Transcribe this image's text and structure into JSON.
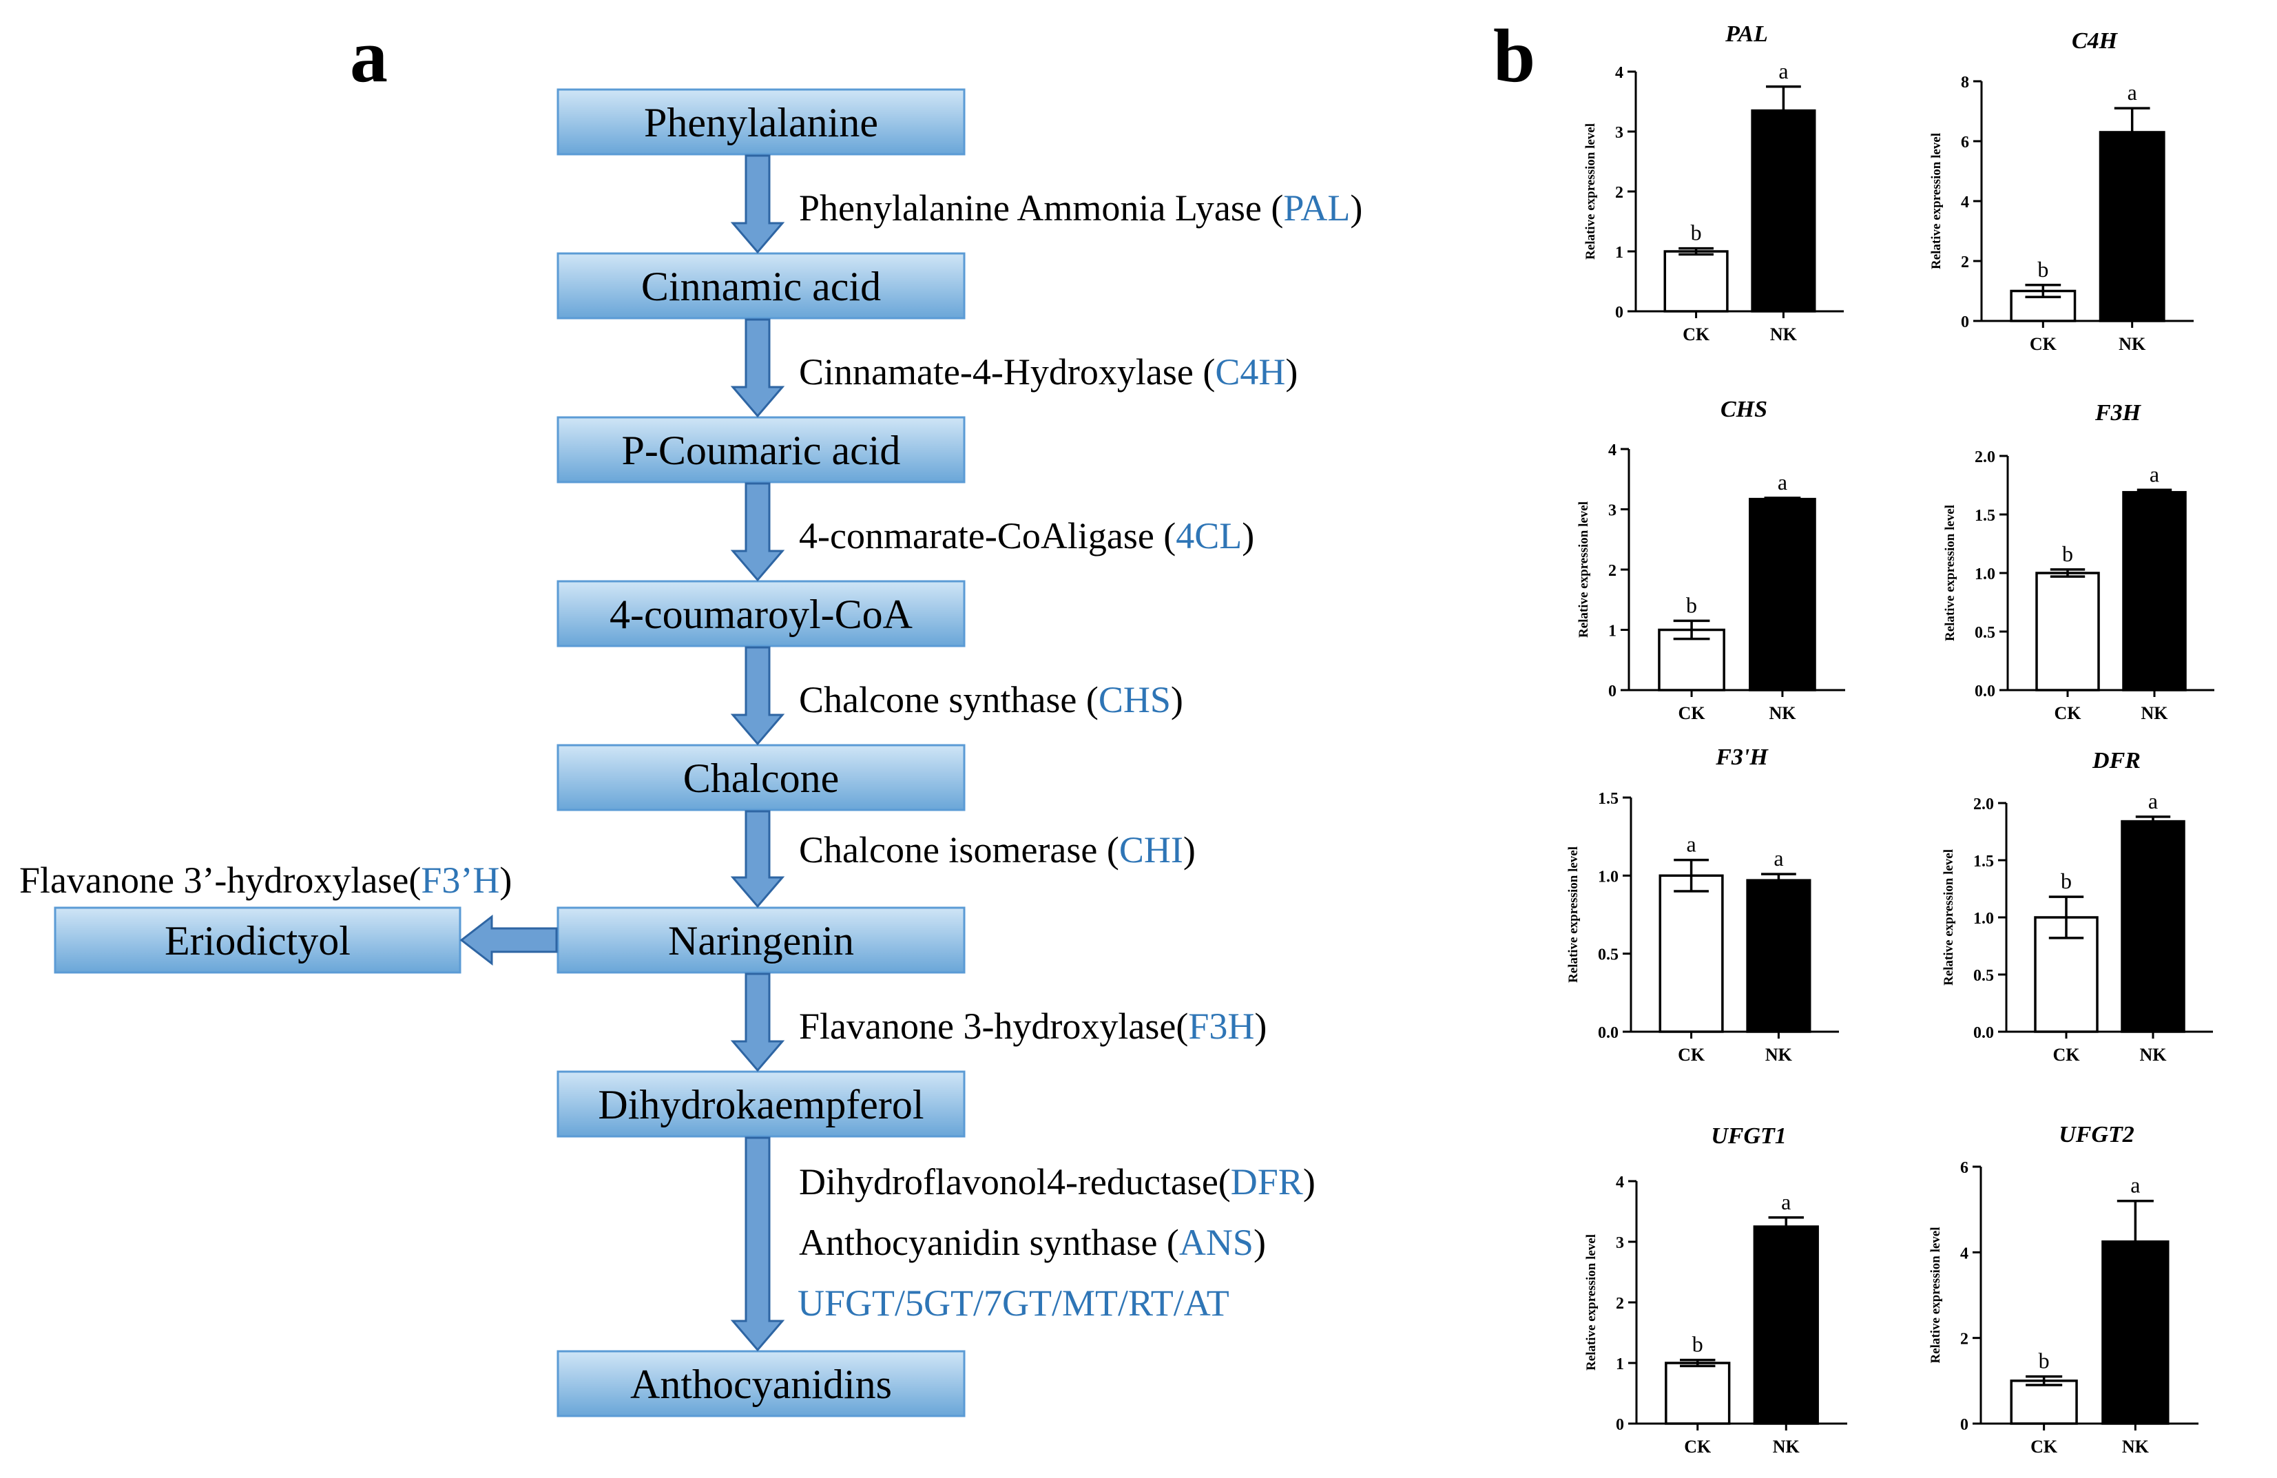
{
  "panel_a": {
    "label": "a",
    "colors": {
      "box_top": "#cfe5f6",
      "box_bottom": "#6aa6d8",
      "box_border": "#5b9bd5",
      "arrow_fill": "#6b9fd4",
      "arrow_stroke": "#2e65a3",
      "enzyme_abbr": "#2e75b6",
      "text": "#000000"
    },
    "compounds": [
      "Phenylalanine",
      "Cinnamic acid",
      "P-Coumaric acid",
      "4-coumaroyl-CoA",
      "Chalcone",
      "Naringenin",
      "Dihydrokaempferol",
      "Anthocyanidins"
    ],
    "side_compound": "Eriodictyol",
    "enzymes": [
      {
        "name": "Phenylalanine Ammonia Lyase (",
        "abbr": "PAL",
        "close": ")"
      },
      {
        "name": "Cinnamate-4-Hydroxylase (",
        "abbr": "C4H",
        "close": ")"
      },
      {
        "name": "4-conmarate-CoAligase (",
        "abbr": "4CL",
        "close": ")"
      },
      {
        "name": "Chalcone synthase (",
        "abbr": "CHS",
        "close": ")"
      },
      {
        "name": "Chalcone isomerase (",
        "abbr": "CHI",
        "close": ")"
      },
      {
        "name": "Flavanone 3-hydroxylase(",
        "abbr": "F3H",
        "close": ")"
      },
      {
        "name": "Dihydroflavonol4-reductase(",
        "abbr": "DFR",
        "close": ")"
      },
      {
        "name": "Anthocyanidin synthase (",
        "abbr": "ANS",
        "close": ")"
      }
    ],
    "final_enzymes": "UFGT/5GT/7GT/MT/RT/AT",
    "side_enzyme": {
      "name": "Flavanone 3’-hydroxylase(",
      "abbr": "F3’H",
      "close": ")"
    }
  },
  "panel_b": {
    "label": "b",
    "ylabel": "Relative expression level",
    "bar_colors": {
      "CK": "#ffffff",
      "NK": "#000000"
    },
    "chart_data": [
      {
        "type": "bar",
        "title": "PAL",
        "categories": [
          "CK",
          "NK"
        ],
        "values": [
          1.0,
          3.35
        ],
        "errors": [
          0.05,
          0.4
        ],
        "letters": [
          "b",
          "a"
        ],
        "ylim": [
          0,
          4
        ],
        "yticks": [
          "0",
          "1",
          "2",
          "3",
          "4"
        ],
        "ytick_values": [
          0,
          1,
          2,
          3,
          4
        ]
      },
      {
        "type": "bar",
        "title": "C4H",
        "categories": [
          "CK",
          "NK"
        ],
        "values": [
          1.0,
          6.3
        ],
        "errors": [
          0.2,
          0.8
        ],
        "letters": [
          "b",
          "a"
        ],
        "ylim": [
          0,
          8
        ],
        "yticks": [
          "0",
          "2",
          "4",
          "6",
          "8"
        ],
        "ytick_values": [
          0,
          2,
          4,
          6,
          8
        ]
      },
      {
        "type": "bar",
        "title": "CHS",
        "categories": [
          "CK",
          "NK"
        ],
        "values": [
          1.0,
          3.17
        ],
        "errors": [
          0.15,
          0.02
        ],
        "letters": [
          "b",
          "a"
        ],
        "ylim": [
          0,
          4
        ],
        "yticks": [
          "0",
          "1",
          "2",
          "3",
          "4"
        ],
        "ytick_values": [
          0,
          1,
          2,
          3,
          4
        ]
      },
      {
        "type": "bar",
        "title": "F3H",
        "categories": [
          "CK",
          "NK"
        ],
        "values": [
          1.0,
          1.69
        ],
        "errors": [
          0.03,
          0.02
        ],
        "letters": [
          "b",
          "a"
        ],
        "ylim": [
          0,
          2.0
        ],
        "yticks": [
          "0.0",
          "0.5",
          "1.0",
          "1.5",
          "2.0"
        ],
        "ytick_values": [
          0,
          0.5,
          1.0,
          1.5,
          2.0
        ]
      },
      {
        "type": "bar",
        "title": "F3'H",
        "categories": [
          "CK",
          "NK"
        ],
        "values": [
          1.0,
          0.97
        ],
        "errors": [
          0.1,
          0.04
        ],
        "letters": [
          "a",
          "a"
        ],
        "ylim": [
          0,
          1.5
        ],
        "yticks": [
          "0.0",
          "0.5",
          "1.0",
          "1.5"
        ],
        "ytick_values": [
          0,
          0.5,
          1.0,
          1.5
        ]
      },
      {
        "type": "bar",
        "title": "DFR",
        "categories": [
          "CK",
          "NK"
        ],
        "values": [
          1.0,
          1.84
        ],
        "errors": [
          0.18,
          0.04
        ],
        "letters": [
          "b",
          "a"
        ],
        "ylim": [
          0,
          2.0
        ],
        "yticks": [
          "0.0",
          "0.5",
          "1.0",
          "1.5",
          "2.0"
        ],
        "ytick_values": [
          0,
          0.5,
          1.0,
          1.5,
          2.0
        ]
      },
      {
        "type": "bar",
        "title": "UFGT1",
        "categories": [
          "CK",
          "NK"
        ],
        "values": [
          1.0,
          3.25
        ],
        "errors": [
          0.05,
          0.15
        ],
        "letters": [
          "b",
          "a"
        ],
        "ylim": [
          0,
          4
        ],
        "yticks": [
          "0",
          "1",
          "2",
          "3",
          "4"
        ],
        "ytick_values": [
          0,
          1,
          2,
          3,
          4
        ]
      },
      {
        "type": "bar",
        "title": "UFGT2",
        "categories": [
          "CK",
          "NK"
        ],
        "values": [
          1.0,
          4.25
        ],
        "errors": [
          0.1,
          0.95
        ],
        "letters": [
          "b",
          "a"
        ],
        "ylim": [
          0,
          6
        ],
        "yticks": [
          "0",
          "2",
          "4",
          "6"
        ],
        "ytick_values": [
          0,
          2,
          4,
          6
        ]
      }
    ]
  }
}
